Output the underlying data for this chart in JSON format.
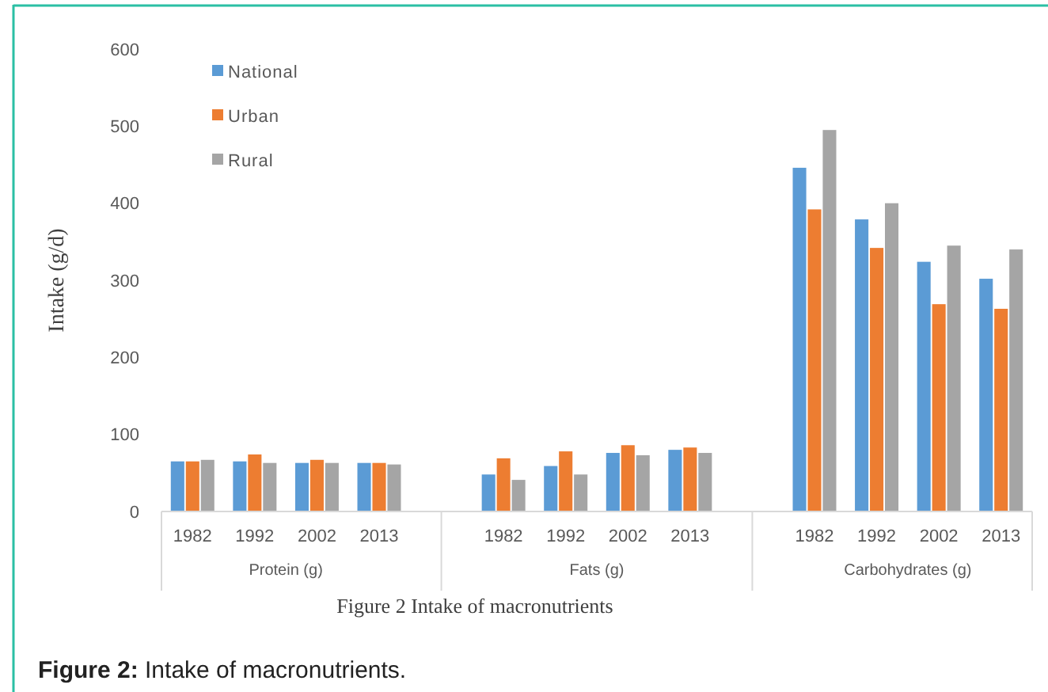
{
  "chart_data": {
    "type": "bar",
    "title": "Figure 2 Intake of macronutrients",
    "ylabel": "Intake (g/d)",
    "categories": [
      "1982",
      "1992",
      "2002",
      "2013",
      null,
      "1982",
      "1992",
      "2002",
      "2013",
      null,
      "1982",
      "1992",
      "2002",
      "2013"
    ],
    "series": [
      {
        "name": "National",
        "color": "#5b9bd5",
        "values": [
          65,
          65,
          63,
          63,
          null,
          48,
          59,
          76,
          80,
          null,
          446,
          379,
          324,
          302
        ]
      },
      {
        "name": "Urban",
        "color": "#ed7d31",
        "values": [
          65,
          74,
          67,
          63,
          null,
          69,
          78,
          86,
          83,
          null,
          392,
          342,
          269,
          263
        ]
      },
      {
        "name": "Rural",
        "color": "#a5a5a5",
        "values": [
          67,
          63,
          63,
          61,
          null,
          41,
          48,
          73,
          76,
          null,
          495,
          400,
          345,
          340
        ]
      }
    ],
    "ylim": [
      0,
      600
    ],
    "yticks": [
      0,
      100,
      200,
      300,
      400,
      500,
      600
    ],
    "grid": false,
    "legend": "top left",
    "annotations": [
      "Protein (g)",
      "Fats (g)",
      "Carbohydrates (g)",
      "Figure 2: Intake of macronutrients."
    ]
  }
}
